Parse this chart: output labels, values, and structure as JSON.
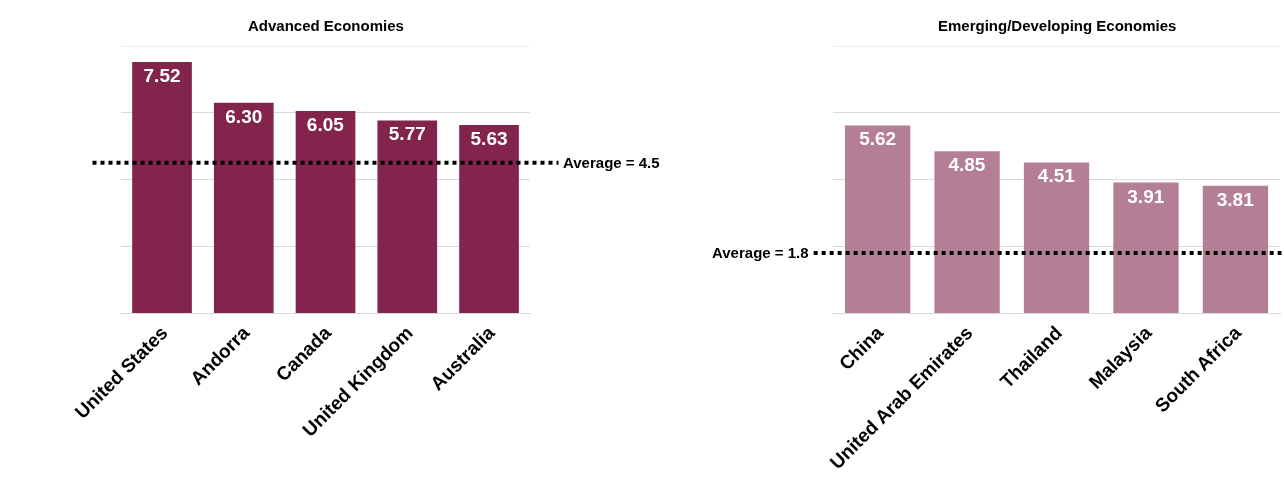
{
  "chart_data": [
    {
      "type": "bar",
      "title": "Advanced Economies",
      "categories": [
        "United States",
        "Andorra",
        "Canada",
        "United Kingdom",
        "Australia"
      ],
      "values": [
        7.52,
        6.3,
        6.05,
        5.77,
        5.63
      ],
      "value_labels": [
        "7.52",
        "6.30",
        "6.05",
        "5.77",
        "5.63"
      ],
      "color": "#82244c",
      "ylim": [
        0,
        8
      ],
      "yticks": [
        {
          "value": 0,
          "label": null
        },
        {
          "value": 2,
          "label": null
        },
        {
          "value": 4,
          "label": null
        },
        {
          "value": 6,
          "label": null
        },
        {
          "value": 8,
          "label": null
        }
      ],
      "grid": "y",
      "tick_labels": "x",
      "legend": false,
      "ref_lines": [
        {
          "axis": "y",
          "value": 4.5,
          "label": "Average = 4.5",
          "color": "#000000",
          "line_style": "dotted"
        }
      ]
    },
    {
      "type": "bar",
      "title": "Emerging/Developing Economies",
      "categories": [
        "China",
        "United Arab Emirates",
        "Thailand",
        "Malaysia",
        "South Africa"
      ],
      "values": [
        5.62,
        4.85,
        4.51,
        3.91,
        3.81
      ],
      "value_labels": [
        "5.62",
        "4.85",
        "4.51",
        "3.91",
        "3.81"
      ],
      "color": "#b47f95",
      "ylim": [
        0,
        8
      ],
      "yticks": [
        {
          "value": 0,
          "label": null
        },
        {
          "value": 2,
          "label": null
        },
        {
          "value": 4,
          "label": null
        },
        {
          "value": 6,
          "label": null
        },
        {
          "value": 8,
          "label": null
        }
      ],
      "grid": "y",
      "tick_labels": "x",
      "legend": false,
      "ref_lines": [
        {
          "axis": "y",
          "value": 1.8,
          "label": "Average = 1.8",
          "color": "#000000",
          "line_style": "dotted"
        }
      ]
    }
  ]
}
